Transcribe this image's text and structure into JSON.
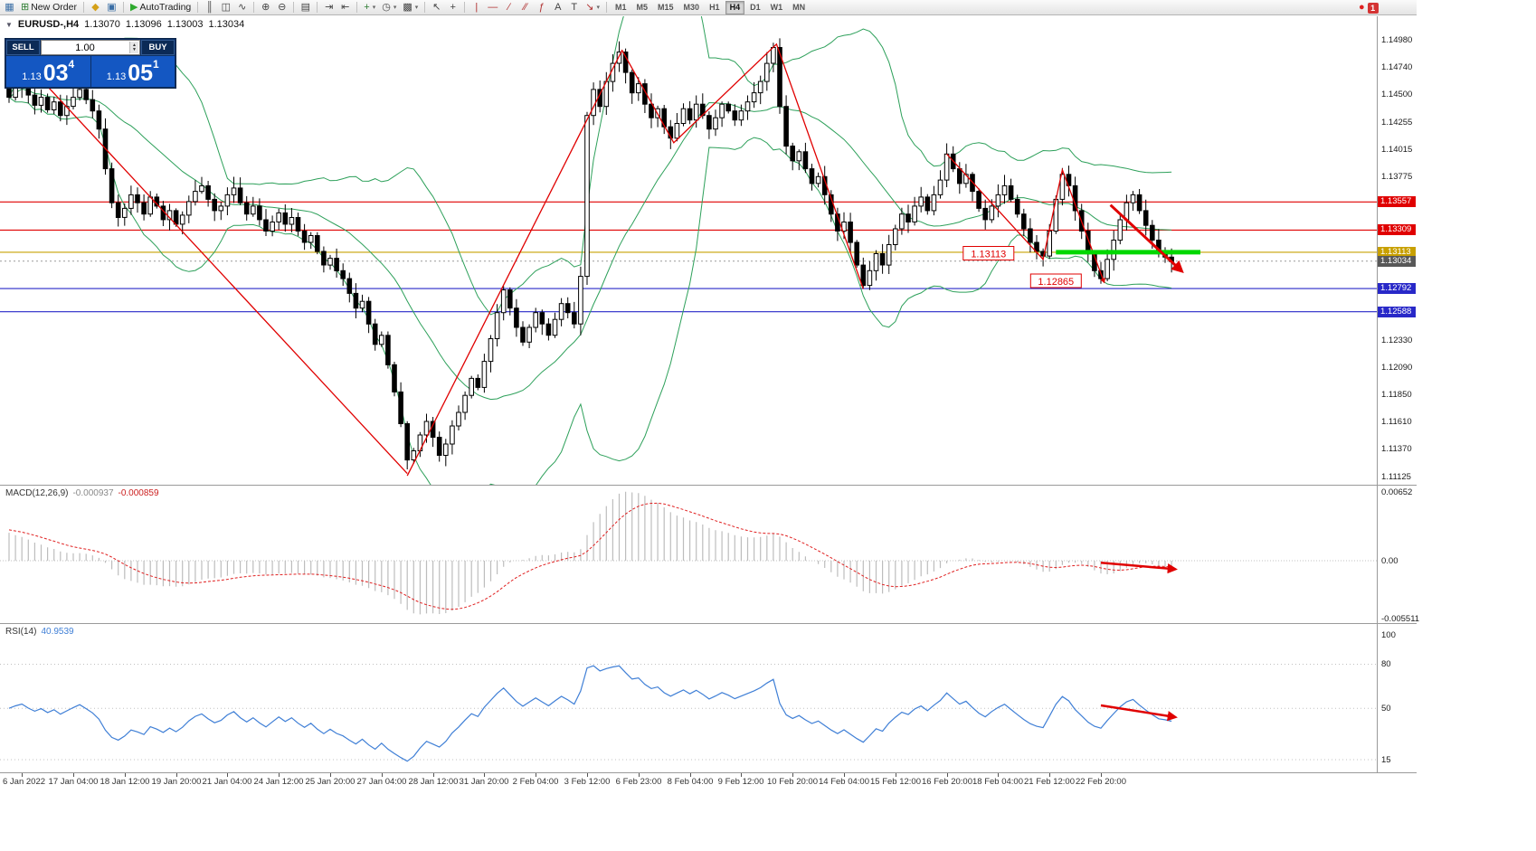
{
  "toolbar": {
    "items": [
      {
        "type": "icon",
        "name": "chart-window-icon",
        "glyph": "▦",
        "color": "#3a6ea5"
      },
      {
        "type": "button",
        "name": "new-order-button",
        "glyph": "⊞",
        "color": "#2e7d32",
        "label": "New Order"
      },
      {
        "type": "divider"
      },
      {
        "type": "icon",
        "name": "metaeditor-icon",
        "glyph": "◆",
        "color": "#d4a017"
      },
      {
        "type": "icon",
        "name": "terminal-icon",
        "glyph": "▣",
        "color": "#3a6ea5"
      },
      {
        "type": "divider"
      },
      {
        "type": "button",
        "name": "autotrading-button",
        "glyph": "▶",
        "color": "#2eaa2e",
        "label": "AutoTrading"
      },
      {
        "type": "divider"
      },
      {
        "type": "icon",
        "name": "bar-chart-icon",
        "glyph": "║",
        "color": "#444"
      },
      {
        "type": "icon",
        "name": "candlestick-chart-icon",
        "glyph": "◫",
        "color": "#444"
      },
      {
        "type": "icon",
        "name": "line-chart-icon",
        "glyph": "∿",
        "color": "#444"
      },
      {
        "type": "divider"
      },
      {
        "type": "icon",
        "name": "zoom-in-icon",
        "glyph": "⊕",
        "color": "#444"
      },
      {
        "type": "icon",
        "name": "zoom-out-icon",
        "glyph": "⊖",
        "color": "#444"
      },
      {
        "type": "divider"
      },
      {
        "type": "icon",
        "name": "tile-windows-icon",
        "glyph": "▤",
        "color": "#444"
      },
      {
        "type": "divider"
      },
      {
        "type": "icon",
        "name": "auto-scroll-icon",
        "glyph": "⇥",
        "color": "#444"
      },
      {
        "type": "icon",
        "name": "chart-shift-icon",
        "glyph": "⇤",
        "color": "#444"
      },
      {
        "type": "divider"
      },
      {
        "type": "icon",
        "name": "indicators-icon",
        "glyph": "+",
        "color": "#2e7d32",
        "caret": true
      },
      {
        "type": "icon",
        "name": "periods-icon",
        "glyph": "◷",
        "color": "#444",
        "caret": true
      },
      {
        "type": "icon",
        "name": "templates-icon",
        "glyph": "▩",
        "color": "#444",
        "caret": true
      },
      {
        "type": "divider"
      },
      {
        "type": "icon",
        "name": "cursor-icon",
        "glyph": "↖",
        "color": "#444"
      },
      {
        "type": "icon",
        "name": "crosshair-icon",
        "glyph": "+",
        "color": "#444"
      },
      {
        "type": "divider"
      },
      {
        "type": "icon",
        "name": "vertical-line-icon",
        "glyph": "|",
        "color": "#b03030"
      },
      {
        "type": "icon",
        "name": "horizontal-line-icon",
        "glyph": "—",
        "color": "#b03030"
      },
      {
        "type": "icon",
        "name": "trendline-icon",
        "glyph": "∕",
        "color": "#b03030"
      },
      {
        "type": "icon",
        "name": "channel-icon",
        "glyph": "∕∕",
        "color": "#b03030"
      },
      {
        "type": "icon",
        "name": "fibonacci-icon",
        "glyph": "ƒ",
        "color": "#b03030"
      },
      {
        "type": "icon",
        "name": "text-icon",
        "glyph": "A",
        "color": "#444"
      },
      {
        "type": "icon",
        "name": "text-label-icon",
        "glyph": "T",
        "color": "#444"
      },
      {
        "type": "icon",
        "name": "arrows-tool-icon",
        "glyph": "↘",
        "color": "#b03030",
        "caret": true
      },
      {
        "type": "divider"
      }
    ],
    "timeframes": [
      "M1",
      "M5",
      "M15",
      "M30",
      "H1",
      "H4",
      "D1",
      "W1",
      "MN"
    ],
    "active_timeframe": "H4",
    "right_icons": [
      {
        "name": "connection-status-icon",
        "glyph": "●"
      },
      {
        "name": "notification-badge",
        "label": "1"
      }
    ]
  },
  "chart": {
    "symbol": "EURUSD-,H4",
    "open": "1.13070",
    "high": "1.13096",
    "low": "1.13003",
    "close": "1.13034"
  },
  "trade_panel": {
    "sell_label": "SELL",
    "buy_label": "BUY",
    "volume": "1.00",
    "sell_price": {
      "main": "1.13",
      "big": "03",
      "sup": "4"
    },
    "buy_price": {
      "main": "1.13",
      "big": "05",
      "sup": "1"
    }
  },
  "price_scale": {
    "plain": [
      {
        "text": "1.14980",
        "price": 1.1498
      },
      {
        "text": "1.14740",
        "price": 1.1474
      },
      {
        "text": "1.14500",
        "price": 1.145
      },
      {
        "text": "1.14255",
        "price": 1.14255
      },
      {
        "text": "1.14015",
        "price": 1.14015
      },
      {
        "text": "1.13775",
        "price": 1.13775
      },
      {
        "text": "1.12330",
        "price": 1.1233
      },
      {
        "text": "1.12090",
        "price": 1.1209
      },
      {
        "text": "1.11850",
        "price": 1.1185
      },
      {
        "text": "1.11610",
        "price": 1.1161
      },
      {
        "text": "1.11370",
        "price": 1.1137
      },
      {
        "text": "1.11125",
        "price": 1.11125
      }
    ],
    "tagged": [
      {
        "text": "1.13557",
        "price": 1.13557,
        "bg": "#e00000"
      },
      {
        "text": "1.13309",
        "price": 1.13309,
        "bg": "#e00000"
      },
      {
        "text": "1.13113",
        "price": 1.13113,
        "bg": "#c8a000"
      },
      {
        "text": "1.13034",
        "price": 1.13034,
        "bg": "#585858"
      },
      {
        "text": "1.12792",
        "price": 1.12792,
        "bg": "#2828c8"
      },
      {
        "text": "1.12588",
        "price": 1.12588,
        "bg": "#2828c8"
      }
    ]
  },
  "macd_panel": {
    "label": "MACD(12,26,9)",
    "value_main": "-0.000937",
    "value_signal": "-0.000859",
    "scale": [
      {
        "text": "0.00652",
        "v": 0.00652
      },
      {
        "text": "0.00",
        "v": 0
      },
      {
        "text": "-0.005511",
        "v": -0.005511
      }
    ]
  },
  "rsi_panel": {
    "label": "RSI(14)",
    "value": "40.9539",
    "scale": [
      {
        "text": "100",
        "v": 100
      },
      {
        "text": "80",
        "v": 80
      },
      {
        "text": "50",
        "v": 50
      },
      {
        "text": "15",
        "v": 15
      }
    ],
    "levels": [
      80,
      50,
      15
    ]
  },
  "time_axis": {
    "labels": [
      {
        "text": "6 Jan 2022",
        "i": 2
      },
      {
        "text": "17 Jan 04:00",
        "i": 10
      },
      {
        "text": "18 Jan 12:00",
        "i": 18
      },
      {
        "text": "19 Jan 20:00",
        "i": 26
      },
      {
        "text": "21 Jan 04:00",
        "i": 34
      },
      {
        "text": "24 Jan 12:00",
        "i": 42
      },
      {
        "text": "25 Jan 20:00",
        "i": 50
      },
      {
        "text": "27 Jan 04:00",
        "i": 58
      },
      {
        "text": "28 Jan 12:00",
        "i": 66
      },
      {
        "text": "31 Jan 20:00",
        "i": 74
      },
      {
        "text": "2 Feb 04:00",
        "i": 82
      },
      {
        "text": "3 Feb 12:00",
        "i": 90
      },
      {
        "text": "6 Feb 23:00",
        "i": 98
      },
      {
        "text": "8 Feb 04:00",
        "i": 106
      },
      {
        "text": "9 Feb 12:00",
        "i": 114
      },
      {
        "text": "10 Feb 20:00",
        "i": 122
      },
      {
        "text": "14 Feb 04:00",
        "i": 130
      },
      {
        "text": "15 Feb 12:00",
        "i": 138
      },
      {
        "text": "16 Feb 20:00",
        "i": 146
      },
      {
        "text": "18 Feb 04:00",
        "i": 154
      },
      {
        "text": "21 Feb 12:00",
        "i": 162
      },
      {
        "text": "22 Feb 20:00",
        "i": 170
      }
    ]
  },
  "chart_data": {
    "type": "candlestick+indicators",
    "symbol": "EURUSD",
    "timeframe": "H4",
    "price_axis_range": [
      1.11061,
      1.15196
    ],
    "closes": [
      1.1448,
      1.1456,
      1.1462,
      1.145,
      1.1441,
      1.1448,
      1.1437,
      1.1444,
      1.1432,
      1.144,
      1.1448,
      1.1455,
      1.1446,
      1.1436,
      1.142,
      1.1385,
      1.1355,
      1.1342,
      1.135,
      1.1362,
      1.1355,
      1.1345,
      1.136,
      1.1352,
      1.134,
      1.1348,
      1.1336,
      1.1344,
      1.1356,
      1.1365,
      1.137,
      1.1358,
      1.1348,
      1.1352,
      1.1362,
      1.1368,
      1.1355,
      1.1345,
      1.1352,
      1.134,
      1.133,
      1.1338,
      1.1346,
      1.1336,
      1.1342,
      1.133,
      1.132,
      1.1326,
      1.1312,
      1.13,
      1.1306,
      1.1295,
      1.1288,
      1.1275,
      1.1262,
      1.1268,
      1.1248,
      1.123,
      1.1238,
      1.1212,
      1.1188,
      1.116,
      1.1128,
      1.1136,
      1.115,
      1.1162,
      1.1148,
      1.1132,
      1.1142,
      1.1158,
      1.117,
      1.1185,
      1.12,
      1.1192,
      1.1215,
      1.1235,
      1.1258,
      1.1278,
      1.1262,
      1.1245,
      1.1232,
      1.1245,
      1.1258,
      1.1248,
      1.1238,
      1.1252,
      1.1266,
      1.1258,
      1.1248,
      1.129,
      1.1432,
      1.1455,
      1.144,
      1.1462,
      1.1478,
      1.1488,
      1.147,
      1.1452,
      1.146,
      1.1442,
      1.143,
      1.1438,
      1.1422,
      1.1412,
      1.1425,
      1.1438,
      1.1428,
      1.1442,
      1.1432,
      1.142,
      1.143,
      1.1442,
      1.1436,
      1.1428,
      1.1436,
      1.1444,
      1.1452,
      1.1462,
      1.1478,
      1.1492,
      1.144,
      1.1405,
      1.1392,
      1.14,
      1.1385,
      1.1372,
      1.1378,
      1.1362,
      1.1345,
      1.133,
      1.1338,
      1.132,
      1.13,
      1.1282,
      1.1295,
      1.131,
      1.13,
      1.1318,
      1.1332,
      1.1345,
      1.1338,
      1.1352,
      1.136,
      1.1348,
      1.1362,
      1.1375,
      1.1398,
      1.1385,
      1.1372,
      1.138,
      1.1365,
      1.135,
      1.134,
      1.1352,
      1.1362,
      1.137,
      1.1358,
      1.1345,
      1.1332,
      1.132,
      1.1312,
      1.1308,
      1.133,
      1.1358,
      1.138,
      1.137,
      1.1348,
      1.133,
      1.131,
      1.1295,
      1.1288,
      1.1305,
      1.1322,
      1.134,
      1.1355,
      1.1362,
      1.1348,
      1.1335,
      1.1322,
      1.131,
      1.1307,
      1.1303
    ],
    "bollinger": {
      "period": 20,
      "deviation": 2,
      "color": "#2da05a"
    },
    "macd": {
      "fast": 12,
      "slow": 26,
      "signal": 9,
      "last_main": -0.000937,
      "last_signal": -0.000859,
      "axis_range": [
        -0.00593,
        0.00714
      ]
    },
    "rsi": {
      "period": 14,
      "last": 40.9539,
      "axis_range": [
        7,
        107
      ]
    },
    "hlines": [
      {
        "price": 1.13557,
        "color": "#e00000"
      },
      {
        "price": 1.13309,
        "color": "#e00000"
      },
      {
        "price": 1.13113,
        "color": "#c8a000"
      },
      {
        "price": 1.12792,
        "color": "#2828c8"
      },
      {
        "price": 1.12588,
        "color": "#2828c8"
      }
    ],
    "current_price": 1.13034,
    "trendlines": [
      {
        "points": [
          [
            2,
            1.1482
          ],
          [
            62,
            1.1116
          ]
        ]
      },
      {
        "points": [
          [
            62,
            1.1114
          ],
          [
            95.5,
            1.149
          ]
        ]
      },
      {
        "points": [
          [
            95.5,
            1.1489
          ],
          [
            103.5,
            1.1408
          ],
          [
            119.5,
            1.1495
          ],
          [
            133,
            1.1279
          ]
        ]
      },
      {
        "points": [
          [
            146,
            1.1398
          ],
          [
            161,
            1.1305
          ],
          [
            164,
            1.1384
          ],
          [
            170.5,
            1.1285
          ]
        ],
        "arrow_end": true
      }
    ],
    "arrows": [
      {
        "panel": "main",
        "from": [
          171.5,
          1.1353
        ],
        "to": [
          182.5,
          1.1295
        ],
        "width": 3
      },
      {
        "panel": "macd",
        "from": [
          170,
          -0.0002
        ],
        "to": [
          181.5,
          -0.0008
        ],
        "width": 2.5
      },
      {
        "panel": "rsi",
        "from": [
          170,
          52
        ],
        "to": [
          181.5,
          44
        ],
        "width": 2.5
      }
    ],
    "green_segment": {
      "price": 1.13113,
      "from_i": 163,
      "to_i": 185.5,
      "color": "#00d800",
      "width": 5
    },
    "price_labels": [
      {
        "text": "1.13113",
        "i": 152.5,
        "price": 1.131
      },
      {
        "text": "1.12865",
        "i": 163,
        "price": 1.12857
      }
    ]
  }
}
